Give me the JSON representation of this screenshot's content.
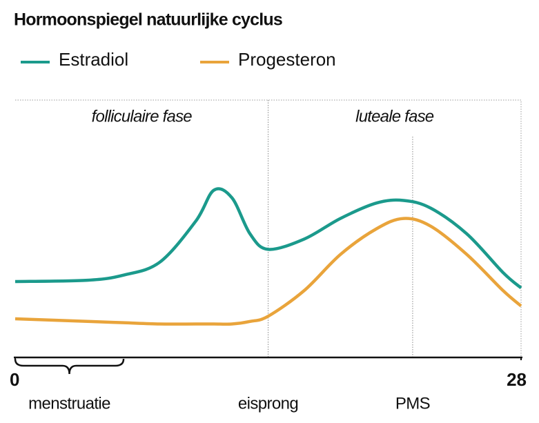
{
  "chart_data": {
    "type": "line",
    "title": "Hormoonspiegel natuurlijke cyclus",
    "x": [
      0,
      4,
      6,
      8,
      10,
      11,
      12,
      13,
      14,
      16,
      18,
      20,
      21.5,
      23,
      25,
      27,
      28
    ],
    "series": [
      {
        "name": "Estradiol",
        "color": "#1b9a8c",
        "values": [
          29.5,
          30,
          32,
          37,
          53,
          65,
          62,
          48,
          42,
          46,
          54,
          60,
          61,
          58,
          48,
          33,
          27
        ]
      },
      {
        "name": "Progesteron",
        "color": "#e9a43b",
        "values": [
          15,
          14,
          13.5,
          13,
          13,
          13,
          13,
          14,
          16,
          26,
          40,
          50,
          54,
          51,
          40,
          26,
          20
        ]
      }
    ],
    "xlim": [
      0,
      28
    ],
    "xticks": [
      0,
      28
    ],
    "ylim": [
      0,
      100
    ],
    "phases": [
      {
        "label": "folliculaire fase",
        "start": 0,
        "end": 14
      },
      {
        "label": "luteale fase",
        "start": 14,
        "end": 28
      }
    ],
    "events": [
      {
        "label": "eisprong",
        "x": 14
      },
      {
        "label": "PMS",
        "x": 22
      }
    ],
    "menstruatie": {
      "label": "menstruatie",
      "start": 0,
      "end": 6
    }
  }
}
